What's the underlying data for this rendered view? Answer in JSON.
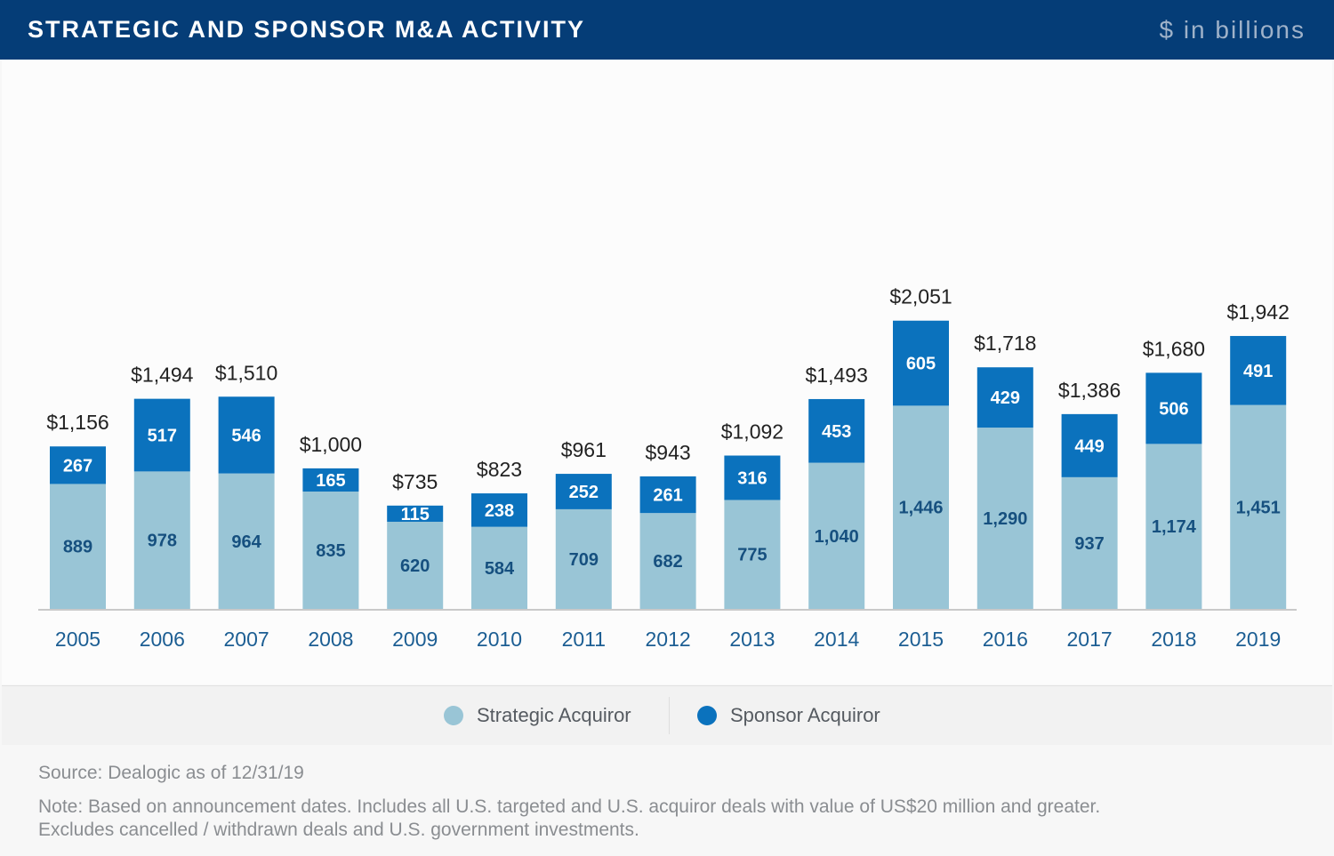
{
  "header": {
    "title": "STRATEGIC AND SPONSOR M&A ACTIVITY",
    "units": "$ in billions"
  },
  "chart_data": {
    "type": "bar",
    "stacked": true,
    "title": "STRATEGIC AND SPONSOR M&A ACTIVITY",
    "ylabel": "$ in billions",
    "xlabel": "",
    "ylim": [
      0,
      2200
    ],
    "grid": false,
    "legend_position": "bottom",
    "categories": [
      "2005",
      "2006",
      "2007",
      "2008",
      "2009",
      "2010",
      "2011",
      "2012",
      "2013",
      "2014",
      "2015",
      "2016",
      "2017",
      "2018",
      "2019"
    ],
    "series": [
      {
        "name": "Strategic Acquiror",
        "color": "#99c5d6",
        "values": [
          889,
          978,
          964,
          835,
          620,
          584,
          709,
          682,
          775,
          1040,
          1446,
          1290,
          937,
          1174,
          1451
        ],
        "labels": [
          "889",
          "978",
          "964",
          "835",
          "620",
          "584",
          "709",
          "682",
          "775",
          "1,040",
          "1,446",
          "1,290",
          "937",
          "1,174",
          "1,451"
        ]
      },
      {
        "name": "Sponsor Acquiror",
        "color": "#0b72bd",
        "values": [
          267,
          517,
          546,
          165,
          115,
          238,
          252,
          261,
          316,
          453,
          605,
          429,
          449,
          506,
          491
        ],
        "labels": [
          "267",
          "517",
          "546",
          "165",
          "115",
          "238",
          "252",
          "261",
          "316",
          "453",
          "605",
          "429",
          "449",
          "506",
          "491"
        ]
      }
    ],
    "totals": [
      1156,
      1494,
      1510,
      1000,
      735,
      823,
      961,
      943,
      1092,
      1493,
      2051,
      1718,
      1386,
      1680,
      1942
    ],
    "total_labels": [
      "$1,156",
      "$1,494",
      "$1,510",
      "$1,000",
      "$735",
      "$823",
      "$961",
      "$943",
      "$1,092",
      "$1,493",
      "$2,051",
      "$1,718",
      "$1,386",
      "$1,680",
      "$1,942"
    ]
  },
  "legend": {
    "items": [
      {
        "label": "Strategic Acquiror",
        "color": "#99c5d6"
      },
      {
        "label": "Sponsor Acquiror",
        "color": "#0b72bd"
      }
    ]
  },
  "footer": {
    "source": "Source: Dealogic as of 12/31/19",
    "note_line1": "Note: Based on announcement dates. Includes all U.S. targeted and U.S. acquiror deals with value of US$20 million and greater.",
    "note_line2": "Excludes cancelled / withdrawn deals and U.S. government investments."
  },
  "colors": {
    "header_bg": "#053d77",
    "axis_label": "#1c5e93",
    "inner_label_strategic": "#16507f",
    "inner_label_sponsor": "#ffffff",
    "total_label": "#222222"
  }
}
